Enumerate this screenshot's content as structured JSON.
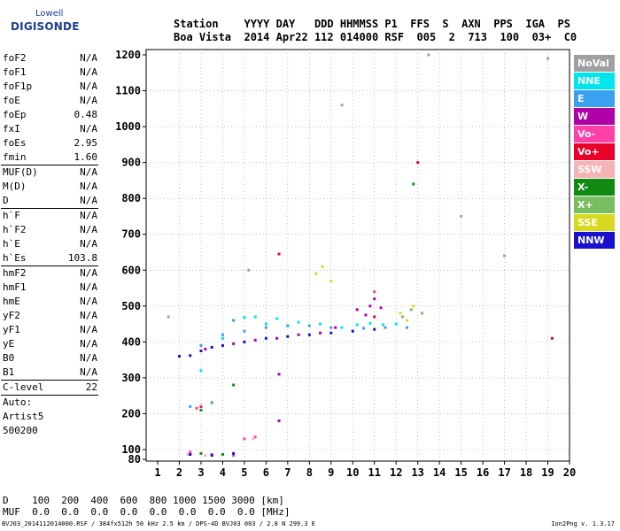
{
  "logo": {
    "line1": "Lowell",
    "line2": "DIGISONDE"
  },
  "header": {
    "row1": "Station    YYYY DAY   DDD HHMMSS P1  FFS  S  AXN  PPS  IGA  PS",
    "row2": "Boa Vista  2014 Apr22 112 014000 RSF  005  2  713  100  03+  C0"
  },
  "params": [
    [
      {
        "name": "foF2",
        "value": "N/A"
      },
      {
        "name": "foF1",
        "value": "N/A"
      },
      {
        "name": "foF1p",
        "value": "N/A"
      },
      {
        "name": "foE",
        "value": "N/A"
      },
      {
        "name": "foEp",
        "value": "0.48"
      },
      {
        "name": "fxI",
        "value": "N/A"
      },
      {
        "name": "foEs",
        "value": "2.95"
      },
      {
        "name": "fmin",
        "value": "1.60"
      }
    ],
    [
      {
        "name": "MUF(D)",
        "value": "N/A"
      },
      {
        "name": "M(D)",
        "value": "N/A"
      },
      {
        "name": "D",
        "value": "N/A"
      }
    ],
    [
      {
        "name": "h`F",
        "value": "N/A"
      },
      {
        "name": "h`F2",
        "value": "N/A"
      },
      {
        "name": "h`E",
        "value": "N/A"
      },
      {
        "name": "h`Es",
        "value": "103.8"
      }
    ],
    [
      {
        "name": "hmF2",
        "value": "N/A"
      },
      {
        "name": "hmF1",
        "value": "N/A"
      },
      {
        "name": "hmE",
        "value": "N/A"
      },
      {
        "name": "yF2",
        "value": "N/A"
      },
      {
        "name": "yF1",
        "value": "N/A"
      },
      {
        "name": "yE",
        "value": "N/A"
      },
      {
        "name": "B0",
        "value": "N/A"
      },
      {
        "name": "B1",
        "value": "N/A"
      }
    ],
    [
      {
        "name": "C-level",
        "value": "22"
      }
    ],
    [
      {
        "name": "Auto:",
        "value": ""
      },
      {
        "name": "Artist5",
        "value": ""
      },
      {
        "name": "500200",
        "value": ""
      }
    ]
  ],
  "legend": [
    {
      "label": "NoVal",
      "color": "#a0a0a0"
    },
    {
      "label": "NNE",
      "color": "#00e5ee"
    },
    {
      "label": "E",
      "color": "#3aa0f0"
    },
    {
      "label": "W",
      "color": "#b000a8"
    },
    {
      "label": "Vo-",
      "color": "#ff3fa8"
    },
    {
      "label": "Vo+",
      "color": "#e8002a"
    },
    {
      "label": "SSW",
      "color": "#f4b4b4"
    },
    {
      "label": "X-",
      "color": "#108a10"
    },
    {
      "label": "X+",
      "color": "#78be60"
    },
    {
      "label": "SSE",
      "color": "#d8d820"
    },
    {
      "label": "NNW",
      "color": "#1a10d0"
    }
  ],
  "tables": {
    "d_row": "D    100  200  400  600  800 1000 1500 3000 [km]",
    "muf_row": "MUF  0.0  0.0  0.0  0.0  0.0  0.0  0.0  0.0 [MHz]"
  },
  "footer": "BVJ03_2014112014000.RSF / 384fx512h 50 kHz 2.5 km / DPS-4D BVJ03 003 / 2.8 N 299.3 E",
  "version": "Ion2Png v. 1.3.17",
  "chart_data": {
    "type": "scatter",
    "title": "",
    "xlabel": "",
    "ylabel": "",
    "xlim": [
      1,
      20
    ],
    "ylim": [
      80,
      1200
    ],
    "x_ticks": [
      1,
      2,
      3,
      4,
      5,
      6,
      7,
      8,
      9,
      10,
      11,
      12,
      13,
      14,
      15,
      16,
      17,
      18,
      19,
      20
    ],
    "y_ticks": [
      80,
      100,
      200,
      300,
      400,
      500,
      600,
      700,
      800,
      900,
      1000,
      1100,
      1200
    ],
    "grid": "dotted",
    "series": [
      {
        "name": "NNE",
        "points": [
          [
            4.5,
            460
          ],
          [
            5.0,
            468
          ],
          [
            5.5,
            470
          ],
          [
            6.5,
            465
          ],
          [
            7.5,
            455
          ],
          [
            8.5,
            450
          ],
          [
            9.5,
            440
          ],
          [
            10.2,
            448
          ],
          [
            10.8,
            452
          ],
          [
            11.4,
            448
          ],
          [
            12.0,
            450
          ],
          [
            3.0,
            320
          ],
          [
            4.0,
            410
          ],
          [
            6.0,
            450
          ],
          [
            7.0,
            445
          ]
        ]
      },
      {
        "name": "E",
        "points": [
          [
            4.0,
            420
          ],
          [
            5.0,
            430
          ],
          [
            6.0,
            440
          ],
          [
            7.0,
            445
          ],
          [
            8.0,
            445
          ],
          [
            9.0,
            440
          ],
          [
            10.5,
            438
          ],
          [
            11.5,
            440
          ],
          [
            12.5,
            440
          ],
          [
            4.5,
            460
          ],
          [
            3.0,
            390
          ],
          [
            2.5,
            220
          ],
          [
            3.5,
            230
          ]
        ]
      },
      {
        "name": "W",
        "points": [
          [
            3.2,
            380
          ],
          [
            4.5,
            395
          ],
          [
            5.5,
            405
          ],
          [
            6.5,
            410
          ],
          [
            7.5,
            420
          ],
          [
            8.5,
            425
          ],
          [
            9.2,
            440
          ],
          [
            10.2,
            490
          ],
          [
            10.8,
            500
          ],
          [
            11.3,
            495
          ],
          [
            10.6,
            475
          ],
          [
            11.0,
            520
          ],
          [
            6.6,
            310
          ],
          [
            6.6,
            180
          ]
        ]
      },
      {
        "name": "Vo-",
        "points": [
          [
            2.5,
            95
          ],
          [
            3.5,
            90
          ],
          [
            4.5,
            88
          ],
          [
            5.0,
            130
          ],
          [
            5.5,
            135
          ],
          [
            2.8,
            215
          ],
          [
            11.0,
            540
          ]
        ]
      },
      {
        "name": "Vo+",
        "points": [
          [
            6.6,
            645
          ],
          [
            13.0,
            900
          ],
          [
            19.2,
            410
          ],
          [
            11.0,
            470
          ],
          [
            3.0,
            220
          ]
        ]
      },
      {
        "name": "SSW",
        "points": [
          [
            2.4,
            90
          ],
          [
            3.2,
            88
          ],
          [
            5.4,
            130
          ],
          [
            3.0,
            225
          ]
        ]
      },
      {
        "name": "X-",
        "points": [
          [
            2.5,
            90
          ],
          [
            3.0,
            92
          ],
          [
            4.0,
            90
          ],
          [
            3.0,
            210
          ],
          [
            12.8,
            840
          ],
          [
            4.5,
            280
          ]
        ]
      },
      {
        "name": "X+",
        "points": [
          [
            12.3,
            470
          ],
          [
            12.7,
            490
          ],
          [
            13.2,
            480
          ],
          [
            3.5,
            232
          ]
        ]
      },
      {
        "name": "SSE",
        "points": [
          [
            8.3,
            590
          ],
          [
            8.6,
            610
          ],
          [
            9.0,
            570
          ],
          [
            12.2,
            480
          ],
          [
            12.5,
            460
          ],
          [
            12.8,
            500
          ]
        ]
      },
      {
        "name": "NNW",
        "points": [
          [
            2.0,
            360
          ],
          [
            2.5,
            362
          ],
          [
            3.0,
            375
          ],
          [
            3.5,
            385
          ],
          [
            4.0,
            390
          ],
          [
            5.0,
            400
          ],
          [
            6.0,
            410
          ],
          [
            7.0,
            415
          ],
          [
            8.0,
            420
          ],
          [
            9.0,
            425
          ],
          [
            10.0,
            430
          ],
          [
            11.0,
            435
          ],
          [
            2.5,
            90
          ],
          [
            3.5,
            88
          ],
          [
            4.5,
            92
          ]
        ]
      },
      {
        "name": "NoVal",
        "points": [
          [
            5.2,
            600
          ],
          [
            9.5,
            1060
          ],
          [
            13.5,
            1200
          ],
          [
            15.0,
            750
          ],
          [
            17.0,
            640
          ],
          [
            19.0,
            1190
          ],
          [
            1.5,
            470
          ]
        ]
      }
    ]
  }
}
